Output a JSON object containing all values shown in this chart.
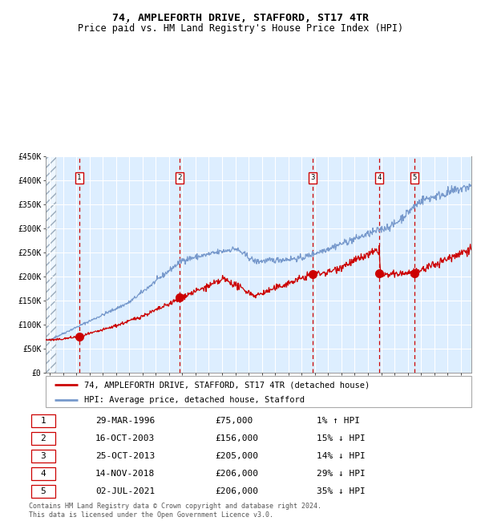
{
  "title": "74, AMPLEFORTH DRIVE, STAFFORD, ST17 4TR",
  "subtitle": "Price paid vs. HM Land Registry's House Price Index (HPI)",
  "ylim": [
    0,
    450000
  ],
  "yticks": [
    0,
    50000,
    100000,
    150000,
    200000,
    250000,
    300000,
    350000,
    400000,
    450000
  ],
  "ytick_labels": [
    "£0",
    "£50K",
    "£100K",
    "£150K",
    "£200K",
    "£250K",
    "£300K",
    "£350K",
    "£400K",
    "£450K"
  ],
  "xlim_start": 1993.7,
  "xlim_end": 2025.8,
  "hpi_color": "#7799cc",
  "price_color": "#cc0000",
  "bg_color": "#ddeeff",
  "grid_color": "#ffffff",
  "vline_color": "#cc0000",
  "sale_dates": [
    1996.24,
    2003.79,
    2013.81,
    2018.87,
    2021.5
  ],
  "sale_prices": [
    75000,
    156000,
    205000,
    206000,
    206000
  ],
  "sale_labels": [
    "1",
    "2",
    "3",
    "4",
    "5"
  ],
  "legend_line1": "74, AMPLEFORTH DRIVE, STAFFORD, ST17 4TR (detached house)",
  "legend_line2": "HPI: Average price, detached house, Stafford",
  "table_data": [
    [
      "1",
      "29-MAR-1996",
      "£75,000",
      "1% ↑ HPI"
    ],
    [
      "2",
      "16-OCT-2003",
      "£156,000",
      "15% ↓ HPI"
    ],
    [
      "3",
      "25-OCT-2013",
      "£205,000",
      "14% ↓ HPI"
    ],
    [
      "4",
      "14-NOV-2018",
      "£206,000",
      "29% ↓ HPI"
    ],
    [
      "5",
      "02-JUL-2021",
      "£206,000",
      "35% ↓ HPI"
    ]
  ],
  "footnote": "Contains HM Land Registry data © Crown copyright and database right 2024.\nThis data is licensed under the Open Government Licence v3.0.",
  "title_fontsize": 9.5,
  "subtitle_fontsize": 8.5,
  "axis_fontsize": 7,
  "legend_fontsize": 7.5,
  "table_fontsize": 8
}
